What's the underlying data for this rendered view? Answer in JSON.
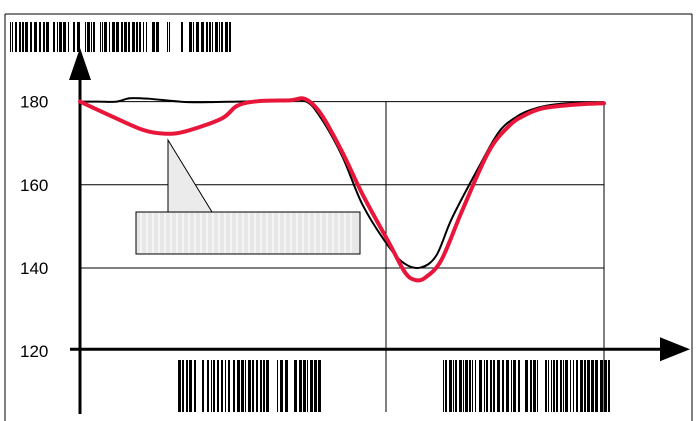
{
  "chart_data": {
    "type": "line",
    "title": "",
    "xlabel": "",
    "ylabel": "",
    "ylim": [
      115,
      190
    ],
    "xlim": [
      0,
      10
    ],
    "y_ticks": [
      {
        "value": 180,
        "label": "180"
      },
      {
        "value": 160,
        "label": "160"
      },
      {
        "value": 140,
        "label": "140"
      },
      {
        "value": 120,
        "label": "120"
      }
    ],
    "grid": true,
    "legend": "none",
    "series": [
      {
        "color": "#000000",
        "x": [
          0,
          0.35,
          0.7,
          0.95,
          1.3,
          2.0,
          2.6,
          3.0,
          3.8,
          4.3,
          4.6,
          5.0,
          5.4,
          5.9,
          6.2,
          6.5,
          6.8,
          7.1,
          7.6,
          8.0,
          8.35,
          8.6,
          8.9,
          9.3,
          9.7,
          10.0
        ],
        "y": [
          180,
          180,
          180,
          180.8,
          180.7,
          179.9,
          179.9,
          180.0,
          180.2,
          180.1,
          176,
          167,
          155,
          145,
          141,
          140.1,
          143,
          152,
          164,
          172.8,
          176.5,
          178,
          179,
          179.6,
          179.8,
          179.8
        ]
      },
      {
        "color": "#e8163a",
        "x": [
          0,
          0.6,
          1.2,
          1.6,
          2.0,
          2.7,
          3.0,
          3.4,
          4.0,
          4.3,
          4.6,
          5.0,
          5.4,
          5.9,
          6.2,
          6.4,
          6.6,
          6.9,
          7.3,
          7.8,
          8.2,
          8.5,
          8.8,
          9.2,
          9.6,
          10.0
        ],
        "y": [
          180,
          176.5,
          173.2,
          172.3,
          172.8,
          175.9,
          179.0,
          180.1,
          180.3,
          180.6,
          177,
          168,
          157.5,
          146,
          139,
          137.1,
          137.8,
          142,
          154,
          168,
          174.3,
          176.8,
          178.3,
          179.0,
          179.4,
          179.6
        ]
      }
    ]
  }
}
